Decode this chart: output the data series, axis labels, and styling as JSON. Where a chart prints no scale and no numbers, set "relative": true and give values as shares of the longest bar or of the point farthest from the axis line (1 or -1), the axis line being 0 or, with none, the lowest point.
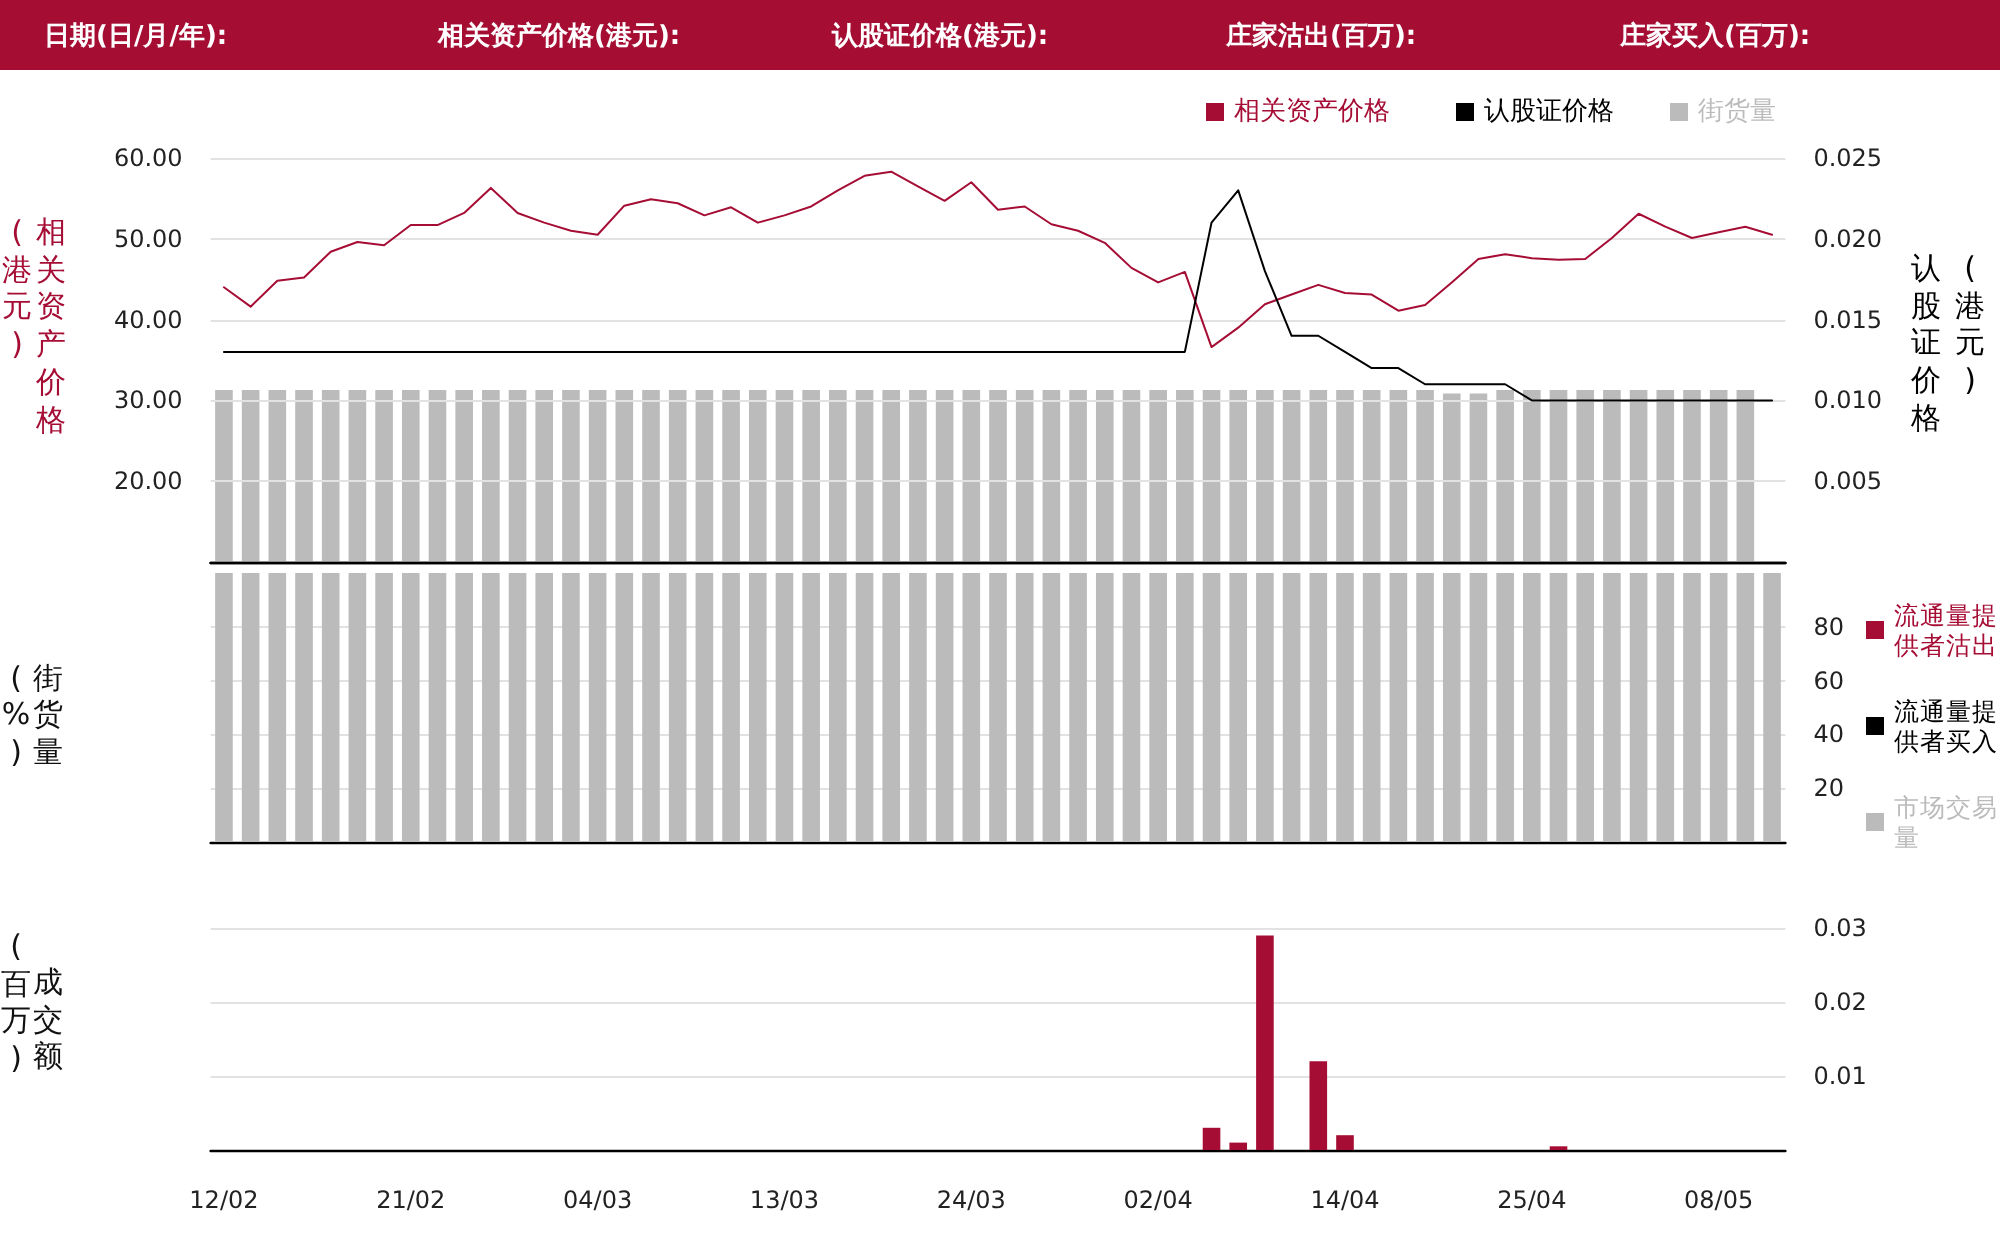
{
  "chart_data": [
    {
      "type": "line",
      "annotations": [
        "日期(日/月/年):",
        "相关资产价格(港元):",
        "认股证价格(港元):",
        "庄家沽出(百万):",
        "庄家买入(百万):"
      ],
      "ylabel": "相关资产价格(港元)",
      "y2label": "认股证价格(港元)",
      "categories": [
        null,
        null,
        null,
        null,
        null,
        null,
        null,
        null,
        null,
        null,
        null,
        null,
        null,
        null,
        null,
        null,
        null,
        null,
        null,
        null,
        null,
        null,
        null,
        null,
        null,
        null,
        null,
        null,
        null,
        null,
        null,
        null,
        null,
        null,
        null,
        null,
        null,
        null,
        null,
        null,
        null,
        null,
        null,
        null,
        null,
        null,
        null,
        null,
        null,
        null,
        null,
        null,
        null,
        null,
        null,
        null,
        null,
        null,
        null
      ],
      "series": [
        {
          "name": "相关资产价格",
          "color": "#a60d35",
          "values": [
            44.0,
            41.6,
            44.8,
            45.2,
            48.4,
            49.6,
            49.2,
            51.7,
            51.7,
            53.2,
            56.3,
            53.2,
            52.0,
            51.0,
            50.5,
            54.1,
            54.9,
            54.4,
            52.9,
            53.9,
            52.0,
            52.9,
            54.0,
            56.0,
            57.8,
            58.3,
            56.5,
            54.7,
            57.0,
            53.6,
            54.0,
            51.8,
            51.0,
            49.5,
            46.4,
            44.6,
            45.9,
            36.6,
            39.0,
            41.9,
            43.1,
            44.3,
            43.3,
            43.1,
            41.1,
            41.8,
            44.6,
            47.5,
            48.1,
            47.6,
            47.4,
            47.5,
            50.1,
            53.1,
            51.5,
            50.1,
            50.8,
            51.5,
            50.5
          ]
        },
        {
          "name": "认股证价格",
          "color": "#000000",
          "axis": "y2",
          "values": [
            0.013,
            0.013,
            0.013,
            0.013,
            0.013,
            0.013,
            0.013,
            0.013,
            0.013,
            0.013,
            0.013,
            0.013,
            0.013,
            0.013,
            0.013,
            0.013,
            0.013,
            0.013,
            0.013,
            0.013,
            0.013,
            0.013,
            0.013,
            0.013,
            0.013,
            0.013,
            0.013,
            0.013,
            0.013,
            0.013,
            0.013,
            0.013,
            0.013,
            0.013,
            0.013,
            0.013,
            0.013,
            0.021,
            0.023,
            0.018,
            0.014,
            0.014,
            0.013,
            0.012,
            0.012,
            0.011,
            0.011,
            0.011,
            0.011,
            0.01,
            0.01,
            0.01,
            0.01,
            0.01,
            0.01,
            0.01,
            0.01,
            0.01,
            0.01
          ]
        }
      ],
      "ylim": [
        10,
        60
      ],
      "yticks": [
        {
          "value": 20,
          "label": "20.00"
        },
        {
          "value": 30,
          "label": "30.00"
        },
        {
          "value": 40,
          "label": "40.00"
        },
        {
          "value": 50,
          "label": "50.00"
        },
        {
          "value": 60,
          "label": "60.00"
        }
      ],
      "y2lim": [
        0,
        0.025
      ],
      "y2ticks": [
        0.005,
        {
          "value": 0.01,
          "label": "0.010"
        },
        0.015,
        {
          "value": 0.02,
          "label": "0.020"
        },
        0.025
      ],
      "grid": "y",
      "legend": "top right",
      "marker": "none"
    },
    {
      "type": "bar",
      "relative": true,
      "categories": [
        null,
        null,
        null,
        null,
        null,
        null,
        null,
        null,
        null,
        null,
        null,
        null,
        null,
        null,
        null,
        null,
        null,
        null,
        null,
        null,
        null,
        null,
        null,
        null,
        null,
        null,
        null,
        null,
        null,
        null,
        null,
        null,
        null,
        null,
        null,
        null,
        null,
        null,
        null,
        null,
        null,
        null,
        null,
        null,
        null,
        null,
        null,
        null,
        null,
        null,
        null,
        null,
        null,
        null,
        null,
        null,
        null,
        null,
        null
      ],
      "series": [
        {
          "name": "街货量",
          "color": "#bbbbbb",
          "values": [
            1,
            1,
            1,
            1,
            1,
            1,
            1,
            1,
            1,
            1,
            1,
            1,
            1,
            1,
            1,
            1,
            1,
            1,
            1,
            1,
            1,
            1,
            1,
            1,
            1,
            1,
            1,
            1,
            1,
            1,
            1,
            1,
            1,
            1,
            1,
            1,
            1,
            1,
            1,
            1,
            1,
            1,
            1,
            1,
            1,
            1,
            0.98,
            0.98,
            1,
            1,
            1,
            1,
            1,
            1,
            1,
            1,
            1,
            1,
            null
          ]
        }
      ],
      "legend": "top right"
    },
    {
      "type": "bar",
      "ylabel": "街货量(%)",
      "categories": [
        null,
        null,
        null,
        null,
        null,
        null,
        null,
        null,
        null,
        null,
        null,
        null,
        null,
        null,
        null,
        null,
        null,
        null,
        null,
        null,
        null,
        null,
        null,
        null,
        null,
        null,
        null,
        null,
        null,
        null,
        null,
        null,
        null,
        null,
        null,
        null,
        null,
        null,
        null,
        null,
        null,
        null,
        null,
        null,
        null,
        null,
        null,
        null,
        null,
        null,
        null,
        null,
        null,
        null,
        null,
        null,
        null,
        null,
        null
      ],
      "series": [
        {
          "name": "流通量提供者沽出",
          "color": "#a60d35",
          "values": [
            null,
            null,
            null,
            null,
            null,
            null,
            null,
            null,
            null,
            null,
            null,
            null,
            null,
            null,
            null,
            null,
            null,
            null,
            null,
            null,
            null,
            null,
            null,
            null,
            null,
            null,
            null,
            null,
            null,
            null,
            null,
            null,
            null,
            null,
            null,
            null,
            null,
            null,
            null,
            null,
            null,
            null,
            null,
            null,
            null,
            null,
            null,
            null,
            null,
            null,
            null,
            null,
            null,
            null,
            null,
            null,
            null,
            null,
            null
          ]
        },
        {
          "name": "流通量提供者买入",
          "color": "#000000",
          "values": [
            null,
            null,
            null,
            null,
            null,
            null,
            null,
            null,
            null,
            null,
            null,
            null,
            null,
            null,
            null,
            null,
            null,
            null,
            null,
            null,
            null,
            null,
            null,
            null,
            null,
            null,
            null,
            null,
            null,
            null,
            null,
            null,
            null,
            null,
            null,
            null,
            null,
            null,
            null,
            null,
            null,
            null,
            null,
            null,
            null,
            null,
            null,
            null,
            null,
            null,
            null,
            null,
            null,
            null,
            null,
            null,
            null,
            null,
            null
          ]
        },
        {
          "name": "市场交易量",
          "color": "#bbbbbb",
          "values": [
            100,
            100,
            100,
            100,
            100,
            100,
            100,
            100,
            100,
            100,
            100,
            100,
            100,
            100,
            100,
            100,
            100,
            100,
            100,
            100,
            100,
            100,
            100,
            100,
            100,
            100,
            100,
            100,
            100,
            100,
            100,
            100,
            100,
            100,
            100,
            100,
            100,
            100,
            100,
            100,
            100,
            100,
            100,
            100,
            100,
            100,
            100,
            100,
            100,
            100,
            100,
            100,
            100,
            100,
            100,
            100,
            100,
            100,
            100
          ]
        }
      ],
      "ylim": [
        0,
        100
      ],
      "yticks": [
        20,
        40,
        60,
        80
      ],
      "grid": "y",
      "legend": "right"
    },
    {
      "type": "bar",
      "ylabel": "成交额(百万)",
      "categories": [
        "12/02",
        null,
        null,
        null,
        null,
        null,
        null,
        "21/02",
        null,
        null,
        null,
        null,
        null,
        null,
        "04/03",
        null,
        null,
        null,
        null,
        null,
        null,
        "13/03",
        null,
        null,
        null,
        null,
        null,
        null,
        "24/03",
        null,
        null,
        null,
        null,
        null,
        null,
        "02/04",
        null,
        null,
        null,
        null,
        null,
        null,
        "14/04",
        null,
        null,
        null,
        null,
        null,
        null,
        "25/04",
        null,
        null,
        null,
        null,
        null,
        null,
        "08/05",
        null,
        null
      ],
      "series": [
        {
          "color": "#a60d35",
          "values": [
            null,
            null,
            null,
            null,
            null,
            null,
            null,
            null,
            null,
            null,
            null,
            null,
            null,
            null,
            null,
            null,
            null,
            null,
            null,
            null,
            null,
            null,
            null,
            null,
            null,
            null,
            null,
            null,
            null,
            null,
            null,
            null,
            null,
            null,
            null,
            null,
            null,
            0.003,
            0.001,
            0.029,
            null,
            0.012,
            0.002,
            null,
            null,
            null,
            null,
            null,
            null,
            null,
            0.0005,
            null,
            null,
            null,
            null,
            null,
            null,
            null,
            null
          ]
        }
      ],
      "ylim": [
        0,
        0.03
      ],
      "yticks": [
        0.01,
        0.02,
        0.03
      ],
      "grid": "y"
    }
  ]
}
